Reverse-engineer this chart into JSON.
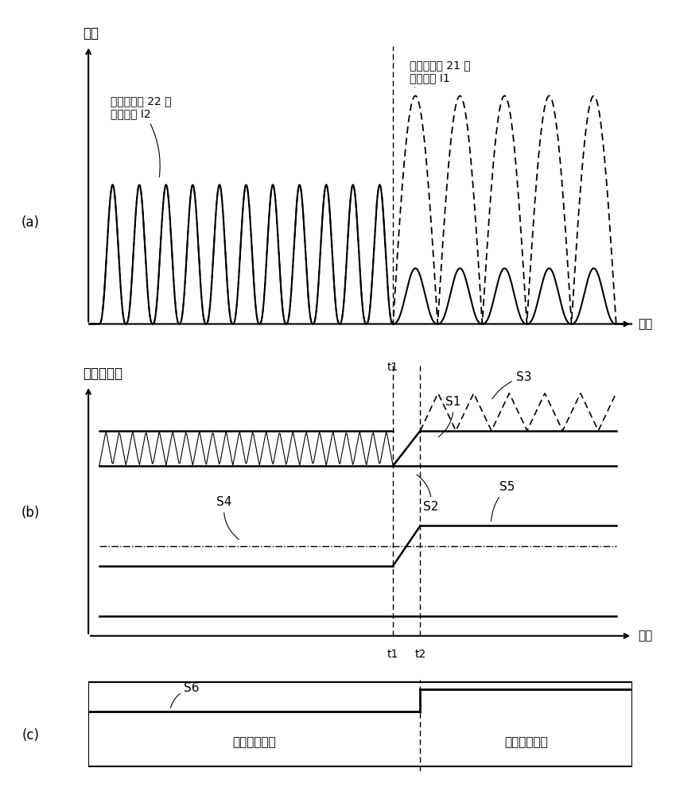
{
  "title_a": "电流",
  "title_b": "电流检测值",
  "label_time": "时间",
  "label_I2": "二极管电桥 22 的\n整流电流 I2",
  "label_I1": "二极管电桥 21 的\n整流电流 I1",
  "label_a": "(a)",
  "label_b": "(b)",
  "label_c": "(c)",
  "label_t1": "t1",
  "label_t2": "t2",
  "label_S1": "S1",
  "label_S2": "S2",
  "label_S3": "S3",
  "label_S4": "S4",
  "label_S5": "S5",
  "label_S6": "S6",
  "label_no_alarm": "（没有警报）",
  "label_alarm": "（输出警报）",
  "bg_color": "#ffffff",
  "t1": 0.56,
  "t2": 0.61
}
